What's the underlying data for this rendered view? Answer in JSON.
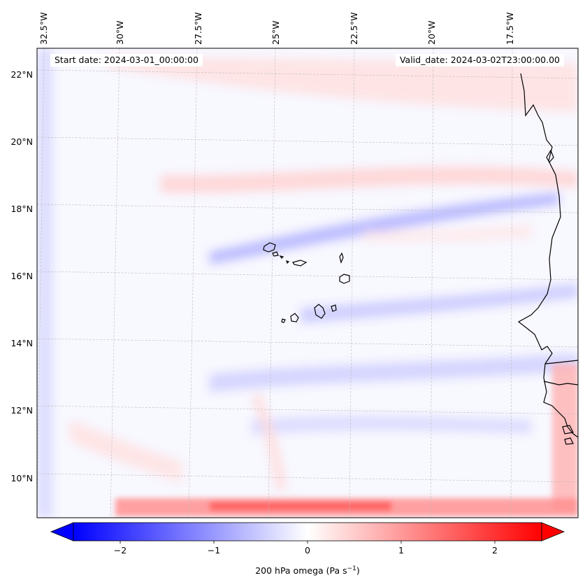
{
  "map": {
    "start_date": "Start date: 2024-03-01_00:00:00",
    "valid_date": "Valid_date: 2024-03-02T23:00:00.00",
    "lon_labels": [
      "32.5°W",
      "30°W",
      "27.5°W",
      "25°W",
      "22.5°W",
      "20°W",
      "17.5°W"
    ],
    "lat_labels": [
      "22°N",
      "20°N",
      "18°N",
      "16°N",
      "14°N",
      "12°N",
      "10°N"
    ],
    "extent": {
      "lon_min": -33.0,
      "lon_max": -15.8,
      "lat_min": 8.9,
      "lat_max": 22.8
    }
  },
  "colorbar": {
    "label": "200 hPa omega (Pa s",
    "label_sup": "−1",
    "label_close": ")",
    "ticks": [
      {
        "value": -2,
        "label": "−2"
      },
      {
        "value": -1,
        "label": "−1"
      },
      {
        "value": 0,
        "label": "0"
      },
      {
        "value": 1,
        "label": "1"
      },
      {
        "value": 2,
        "label": "2"
      }
    ],
    "vmin": -2.5,
    "vmax": 2.5,
    "neg_color": "#0000ff",
    "mid_color": "#ffffff",
    "pos_color": "#ff0000"
  },
  "colors": {
    "coastline": "#000000",
    "grid": "#bbbbbb"
  }
}
